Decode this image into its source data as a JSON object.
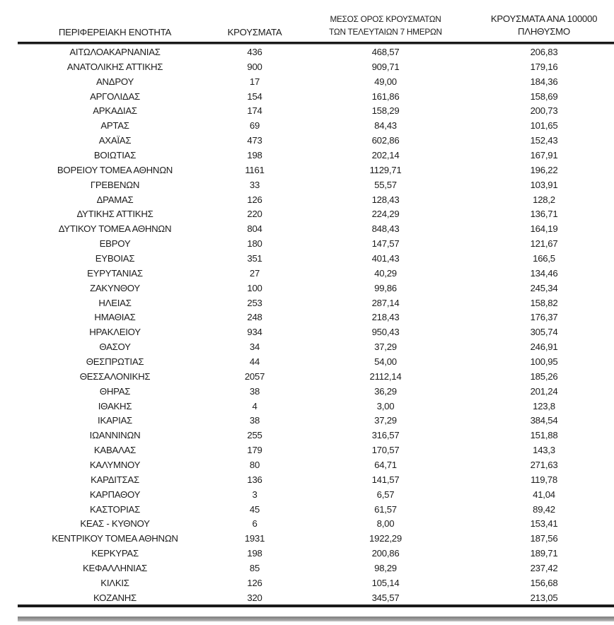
{
  "document": {
    "background": "#ffffff",
    "text_color": "#1c1c1c",
    "rule_color": "#1b1b1b",
    "bottom_bar_color": "#9a9a9a",
    "decimal_separator": ","
  },
  "table": {
    "header": {
      "region": "ΠΕΡΙΦΕΡΕΙΑΚΗ ΕΝΟΤΗΤΑ",
      "cases": "ΚΡΟΥΣΜΑΤΑ",
      "avg7_line1": "ΜΕΣΟΣ ΟΡΟΣ ΚΡΟΥΣΜΑΤΩΝ",
      "avg7_line2": "ΤΩΝ ΤΕΛΕΥΤΑΙΩΝ 7 ΗΜΕΡΩΝ",
      "per100k_line1": "ΚΡΟΥΣΜΑΤΑ ΑΝΑ 100000",
      "per100k_line2": "ΠΛΗΘΥΣΜΟ"
    },
    "rows": [
      [
        "ΑΙΤΩΛΟΑΚΑΡΝΑΝΙΑΣ",
        "436",
        "468,57",
        "206,83"
      ],
      [
        "ΑΝΑΤΟΛΙΚΗΣ ΑΤΤΙΚΗΣ",
        "900",
        "909,71",
        "179,16"
      ],
      [
        "ΑΝΔΡΟΥ",
        "17",
        "49,00",
        "184,36"
      ],
      [
        "ΑΡΓΟΛΙΔΑΣ",
        "154",
        "161,86",
        "158,69"
      ],
      [
        "ΑΡΚΑΔΙΑΣ",
        "174",
        "158,29",
        "200,73"
      ],
      [
        "ΑΡΤΑΣ",
        "69",
        "84,43",
        "101,65"
      ],
      [
        "ΑΧΑΪΑΣ",
        "473",
        "602,86",
        "152,43"
      ],
      [
        "ΒΟΙΩΤΙΑΣ",
        "198",
        "202,14",
        "167,91"
      ],
      [
        "ΒΟΡΕΙΟΥ ΤΟΜΕΑ ΑΘΗΝΩΝ",
        "1161",
        "1129,71",
        "196,22"
      ],
      [
        "ΓΡΕΒΕΝΩΝ",
        "33",
        "55,57",
        "103,91"
      ],
      [
        "ΔΡΑΜΑΣ",
        "126",
        "128,43",
        "128,2"
      ],
      [
        "ΔΥΤΙΚΗΣ ΑΤΤΙΚΗΣ",
        "220",
        "224,29",
        "136,71"
      ],
      [
        "ΔΥΤΙΚΟΥ ΤΟΜΕΑ ΑΘΗΝΩΝ",
        "804",
        "848,43",
        "164,19"
      ],
      [
        "ΕΒΡΟΥ",
        "180",
        "147,57",
        "121,67"
      ],
      [
        "ΕΥΒΟΙΑΣ",
        "351",
        "401,43",
        "166,5"
      ],
      [
        "ΕΥΡΥΤΑΝΙΑΣ",
        "27",
        "40,29",
        "134,46"
      ],
      [
        "ΖΑΚΥΝΘΟΥ",
        "100",
        "99,86",
        "245,34"
      ],
      [
        "ΗΛΕΙΑΣ",
        "253",
        "287,14",
        "158,82"
      ],
      [
        "ΗΜΑΘΙΑΣ",
        "248",
        "218,43",
        "176,37"
      ],
      [
        "ΗΡΑΚΛΕΙΟΥ",
        "934",
        "950,43",
        "305,74"
      ],
      [
        "ΘΑΣΟΥ",
        "34",
        "37,29",
        "246,91"
      ],
      [
        "ΘΕΣΠΡΩΤΙΑΣ",
        "44",
        "54,00",
        "100,95"
      ],
      [
        "ΘΕΣΣΑΛΟΝΙΚΗΣ",
        "2057",
        "2112,14",
        "185,26"
      ],
      [
        "ΘΗΡΑΣ",
        "38",
        "36,29",
        "201,24"
      ],
      [
        "ΙΘΑΚΗΣ",
        "4",
        "3,00",
        "123,8"
      ],
      [
        "ΙΚΑΡΙΑΣ",
        "38",
        "37,29",
        "384,54"
      ],
      [
        "ΙΩΑΝΝΙΝΩΝ",
        "255",
        "316,57",
        "151,88"
      ],
      [
        "ΚΑΒΑΛΑΣ",
        "179",
        "170,57",
        "143,3"
      ],
      [
        "ΚΑΛΥΜΝΟΥ",
        "80",
        "64,71",
        "271,63"
      ],
      [
        "ΚΑΡΔΙΤΣΑΣ",
        "136",
        "141,57",
        "119,78"
      ],
      [
        "ΚΑΡΠΑΘΟΥ",
        "3",
        "6,57",
        "41,04"
      ],
      [
        "ΚΑΣΤΟΡΙΑΣ",
        "45",
        "61,57",
        "89,42"
      ],
      [
        "ΚΕΑΣ - ΚΥΘΝΟΥ",
        "6",
        "8,00",
        "153,41"
      ],
      [
        "ΚΕΝΤΡΙΚΟΥ ΤΟΜΕΑ ΑΘΗΝΩΝ",
        "1931",
        "1922,29",
        "187,56"
      ],
      [
        "ΚΕΡΚΥΡΑΣ",
        "198",
        "200,86",
        "189,71"
      ],
      [
        "ΚΕΦΑΛΛΗΝΙΑΣ",
        "85",
        "98,29",
        "237,42"
      ],
      [
        "ΚΙΛΚΙΣ",
        "126",
        "105,14",
        "156,68"
      ],
      [
        "ΚΟΖΑΝΗΣ",
        "320",
        "345,57",
        "213,05"
      ]
    ]
  }
}
